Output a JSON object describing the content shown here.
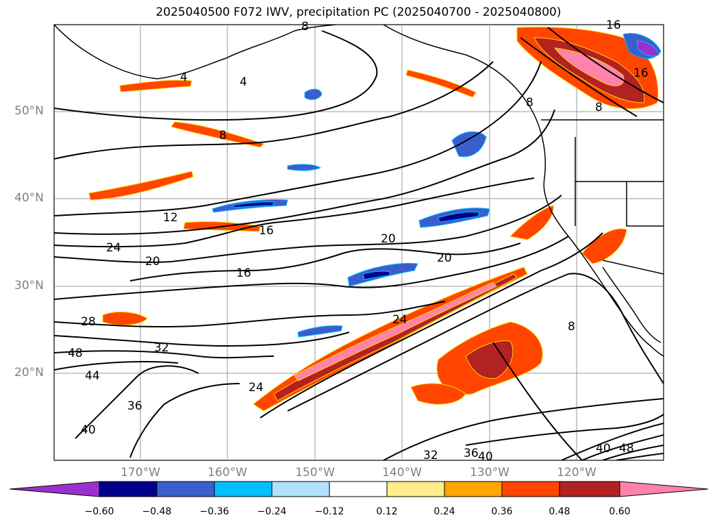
{
  "title": "2025040500 F072 IWV, precipitation PC (2025040700 - 2025040800)",
  "map": {
    "lat_labels": [
      "50°N",
      "40°N",
      "30°N",
      "20°N"
    ],
    "lon_labels": [
      "170°W",
      "160°W",
      "150°W",
      "140°W",
      "130°W",
      "120°W"
    ],
    "iwv_contour_labels": [
      "4",
      "4",
      "8",
      "8",
      "8",
      "8",
      "16",
      "12",
      "16",
      "20",
      "20",
      "24",
      "20",
      "16",
      "24",
      "28",
      "32",
      "48",
      "44",
      "36",
      "40",
      "24",
      "32",
      "36",
      "40",
      "48",
      "40",
      "16",
      "8"
    ]
  },
  "colorbar": {
    "ticks": [
      "−0.60",
      "−0.48",
      "−0.36",
      "−0.24",
      "−0.12",
      "0.12",
      "0.24",
      "0.36",
      "0.48",
      "0.60"
    ],
    "colors": [
      "#9932CC",
      "#00008B",
      "#3A5FCD",
      "#00BFFF",
      "#B0E2FF",
      "#FFFFFF",
      "#FFEC8B",
      "#FFA500",
      "#FF4500",
      "#B22222",
      "#FF82AB"
    ]
  }
}
